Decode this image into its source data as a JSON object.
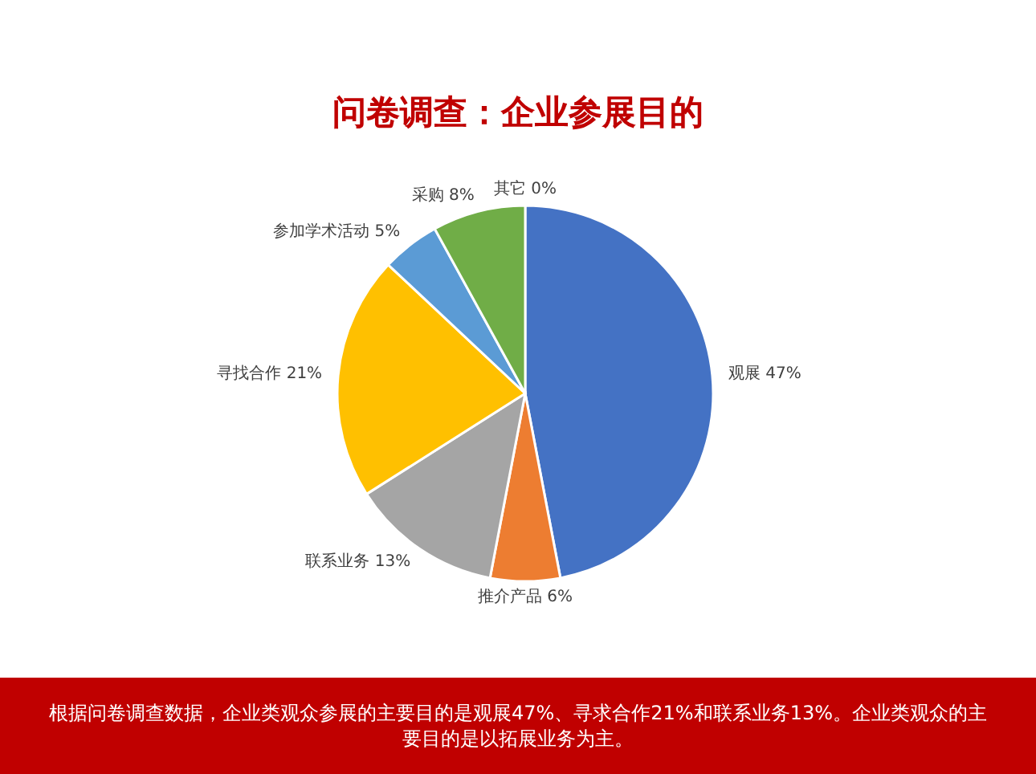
{
  "chart_data": {
    "type": "pie",
    "title": "问卷调查：企业参展目的",
    "categories": [
      "观展",
      "推介产品",
      "联系业务",
      "寻找合作",
      "参加学术活动",
      "采购",
      "其它"
    ],
    "values": [
      47,
      6,
      13,
      21,
      5,
      8,
      0
    ],
    "value_labels": [
      "47%",
      "6%",
      "13%",
      "21%",
      "5%",
      "8%",
      "0%"
    ],
    "colors": [
      "#4472c4",
      "#ed7d31",
      "#a5a5a5",
      "#ffc000",
      "#5b9bd5",
      "#70ad47",
      "#264478"
    ],
    "legend": false,
    "annotations": [
      "根据问卷调查数据，企业类观众参展的主要目的是观展47%、寻求合作21%和联系业务13%。企业类观众的主要目的是以拓展业务为主。"
    ]
  }
}
